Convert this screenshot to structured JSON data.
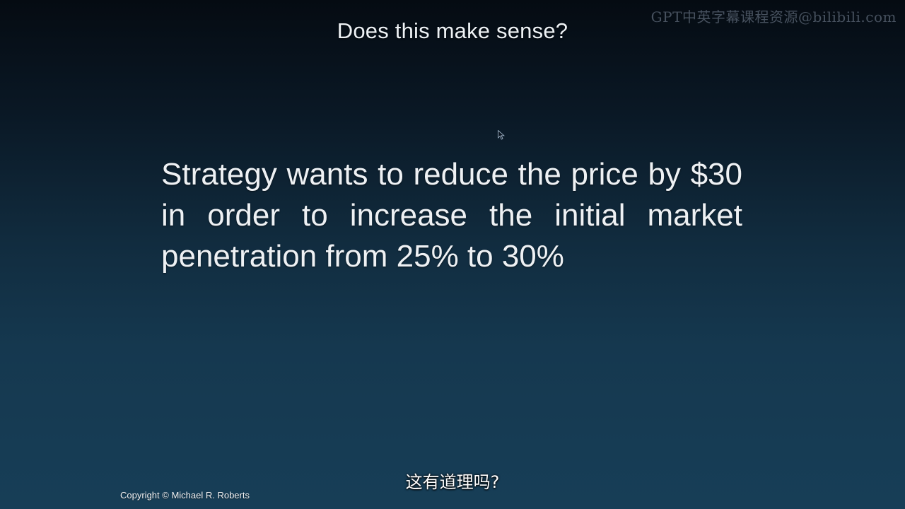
{
  "slide": {
    "title": "Does this make sense?",
    "body": "Strategy wants to reduce the price by $30 in order to increase the initial market penetration from 25% to 30%",
    "copyright": "Copyright © Michael R. Roberts"
  },
  "overlay": {
    "watermark": "GPT中英字幕课程资源@bilibili.com",
    "subtitle": "这有道理吗?"
  },
  "colors": {
    "background_top": "#050b12",
    "background_bottom": "#173e57",
    "text": "#eef1f4"
  },
  "icons": {
    "pointer": "mouse-cursor-icon"
  }
}
